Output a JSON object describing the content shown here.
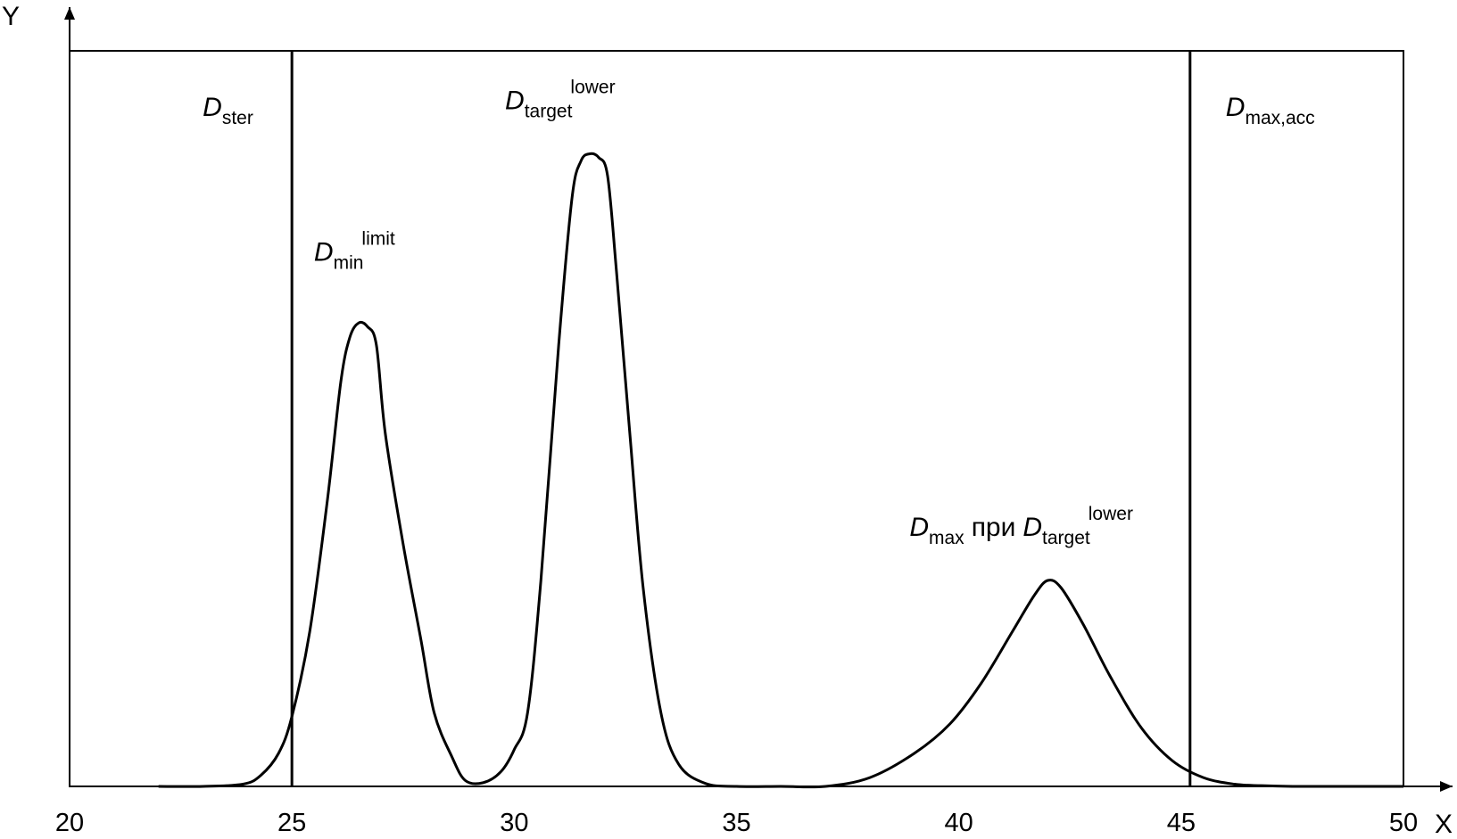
{
  "chart_data": {
    "type": "line",
    "xlabel": "X",
    "ylabel": "Y",
    "xlim": [
      20,
      50
    ],
    "ylim": [
      0,
      1
    ],
    "x_ticks": [
      "20",
      "25",
      "30",
      "35",
      "40",
      "45",
      "50"
    ],
    "vertical_lines": [
      {
        "x": 25,
        "label_main": "D",
        "label_sub": "ster",
        "label_sup": ""
      },
      {
        "x": 45.2,
        "label_main": "D",
        "label_sub": "max,acc",
        "label_sup": ""
      }
    ],
    "peaks": [
      {
        "label_main": "D",
        "label_sub": "min",
        "label_sup": "limit",
        "label_mid": "",
        "label_main2": "",
        "label_sub2": "",
        "label_sup2": "",
        "x": 26.5,
        "y": 0.63
      },
      {
        "label_main": "D",
        "label_sub": "target",
        "label_sup": "lower",
        "label_mid": "",
        "label_main2": "",
        "label_sub2": "",
        "label_sup2": "",
        "x": 31.8,
        "y": 0.86
      },
      {
        "label_main": "D",
        "label_sub": "max",
        "label_sup": "",
        "label_mid": "при",
        "label_main2": "D",
        "label_sub2": "target",
        "label_sup2": "lower",
        "x": 42.0,
        "y": 0.28
      }
    ],
    "series": [
      {
        "x": [
          22.0,
          23.0,
          23.9,
          24.3,
          24.7,
          25.0,
          25.4,
          25.8,
          26.1,
          26.3,
          26.5,
          26.7,
          26.9,
          27.1,
          27.5,
          27.9,
          28.2,
          28.6,
          28.9,
          29.3,
          29.7,
          30.0,
          30.3,
          30.6,
          31.0,
          31.3,
          31.5,
          31.7,
          31.9,
          32.1,
          32.3,
          32.6,
          32.9,
          33.3,
          33.7,
          34.3,
          35.0,
          36.0,
          37.0,
          38.0,
          39.0,
          39.8,
          40.5,
          41.2,
          41.7,
          42.0,
          42.3,
          42.8,
          43.4,
          44.1,
          44.8,
          45.5,
          46.2,
          46.8,
          47.5,
          48.5,
          50.0
        ],
        "y": [
          0,
          0,
          0.003,
          0.015,
          0.045,
          0.095,
          0.21,
          0.39,
          0.55,
          0.61,
          0.63,
          0.625,
          0.6,
          0.48,
          0.33,
          0.2,
          0.1,
          0.04,
          0.008,
          0.005,
          0.02,
          0.05,
          0.1,
          0.28,
          0.6,
          0.8,
          0.85,
          0.86,
          0.855,
          0.83,
          0.7,
          0.48,
          0.27,
          0.1,
          0.03,
          0.004,
          0,
          0,
          0,
          0.012,
          0.045,
          0.085,
          0.14,
          0.21,
          0.26,
          0.28,
          0.27,
          0.22,
          0.15,
          0.08,
          0.035,
          0.012,
          0.003,
          0.001,
          0,
          0,
          0
        ]
      }
    ]
  }
}
